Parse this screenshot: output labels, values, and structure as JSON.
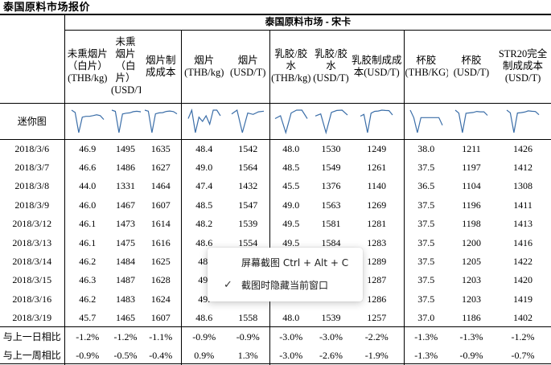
{
  "page": {
    "title": "泰国原料市场报价"
  },
  "table": {
    "banner": "泰国原料市场 - 宋卡",
    "headers": [
      "未熏烟片（白片）(THB/kg)",
      "未熏烟片（白片）(USD/T)",
      "烟片制成成本",
      "烟片(THB/kg)",
      "烟片(USD/T)",
      "乳胶/胶水(THB/kg)",
      "乳胶/胶水(USD/T)",
      "乳胶制成成本(USD/T)",
      "杯胶(THB/KG)",
      "杯胶(USD/T)",
      "STR20完全制成成本(USD/T)"
    ],
    "sparkline_label": "迷你图",
    "rows": [
      {
        "date": "2018/3/6",
        "values": [
          "46.9",
          "1495",
          "1635",
          "48.4",
          "1542",
          "48.0",
          "1530",
          "1249",
          "38.0",
          "1211",
          "1426"
        ]
      },
      {
        "date": "2018/3/7",
        "values": [
          "46.6",
          "1486",
          "1627",
          "49.0",
          "1564",
          "48.5",
          "1549",
          "1261",
          "37.5",
          "1197",
          "1412"
        ]
      },
      {
        "date": "2018/3/8",
        "values": [
          "44.0",
          "1331",
          "1464",
          "47.4",
          "1432",
          "45.5",
          "1376",
          "1140",
          "36.5",
          "1104",
          "1308"
        ]
      },
      {
        "date": "2018/3/9",
        "values": [
          "46.0",
          "1467",
          "1607",
          "48.5",
          "1547",
          "49.0",
          "1563",
          "1269",
          "37.5",
          "1196",
          "1411"
        ]
      },
      {
        "date": "2018/3/12",
        "values": [
          "46.1",
          "1473",
          "1614",
          "48.2",
          "1539",
          "49.5",
          "1581",
          "1281",
          "37.5",
          "1198",
          "1413"
        ]
      },
      {
        "date": "2018/3/13",
        "values": [
          "46.1",
          "1475",
          "1616",
          "48.6",
          "1554",
          "49.5",
          "1584",
          "1283",
          "37.5",
          "1200",
          "1416"
        ]
      },
      {
        "date": "2018/3/14",
        "values": [
          "46.2",
          "1484",
          "1625",
          "48.",
          "",
          "",
          "",
          "1289",
          "37.5",
          "1205",
          "1422"
        ]
      },
      {
        "date": "2018/3/15",
        "values": [
          "46.3",
          "1487",
          "1628",
          "49.",
          "",
          "",
          "",
          "1287",
          "37.5",
          "1203",
          "1420"
        ]
      },
      {
        "date": "2018/3/16",
        "values": [
          "46.2",
          "1483",
          "1624",
          "49.",
          "",
          "",
          "",
          "1286",
          "37.5",
          "1203",
          "1419"
        ]
      },
      {
        "date": "2018/3/19",
        "values": [
          "45.7",
          "1465",
          "1607",
          "48.6",
          "1558",
          "48.0",
          "1539",
          "1257",
          "37.0",
          "1186",
          "1402"
        ]
      }
    ],
    "comparisons": [
      {
        "label": "与上一日相比",
        "values": [
          "-1.2%",
          "-1.2%",
          "-1.1%",
          "-0.9%",
          "-0.9%",
          "-3.0%",
          "-3.0%",
          "-2.2%",
          "-1.3%",
          "-1.3%",
          "-1.2%"
        ]
      },
      {
        "label": "与上一周相比",
        "values": [
          "-0.9%",
          "-0.5%",
          "-0.4%",
          "0.9%",
          "1.3%",
          "-3.0%",
          "-2.6%",
          "-1.9%",
          "-1.3%",
          "-0.9%",
          "-0.7%"
        ]
      }
    ]
  },
  "context_menu": {
    "items": [
      {
        "label": "屏幕截图 Ctrl + Alt + C",
        "checked": false
      },
      {
        "label": "截图时隐藏当前窗口",
        "checked": true,
        "check_glyph": "✓"
      }
    ]
  }
}
